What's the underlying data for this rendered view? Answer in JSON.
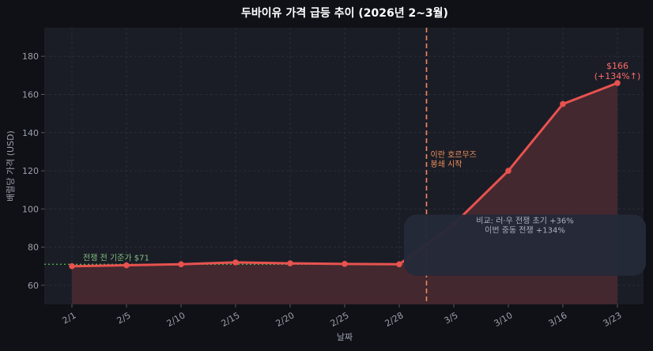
{
  "chart_data": {
    "type": "line",
    "title": "두바이유 가격 급등 추이 (2026년 2~3월)",
    "xlabel": "날짜",
    "ylabel": "배럴당 가격 (USD)",
    "ylim": [
      50,
      195
    ],
    "yticks": [
      60,
      80,
      100,
      120,
      140,
      160,
      180
    ],
    "categories": [
      "2/1",
      "2/5",
      "2/10",
      "2/15",
      "2/20",
      "2/25",
      "2/28",
      "3/5",
      "3/10",
      "3/16",
      "3/23"
    ],
    "values": [
      70,
      70.5,
      71,
      72,
      71.5,
      71.2,
      71,
      92,
      120,
      155,
      166
    ],
    "grid": true,
    "colors": {
      "line": "#e8524f",
      "fill": "#4a2a31",
      "baseline": "#4caf50",
      "event": "#f08a5a",
      "plot_bg": "#1b1d26",
      "page_bg": "#101116"
    },
    "annotations": {
      "baseline_label": "전쟁 전 기준가 $71",
      "baseline_value": 71,
      "event_label_line1": "이란 호르무즈",
      "event_label_line2": "봉쇄 시작",
      "event_position": 6.5,
      "end_label_line1": "$166",
      "end_label_line2": "(+134%↑)",
      "compare_line1": "비교: 러·우 전쟁 초기 +36%",
      "compare_line2": "이번 중동 전쟁 +134%"
    }
  }
}
